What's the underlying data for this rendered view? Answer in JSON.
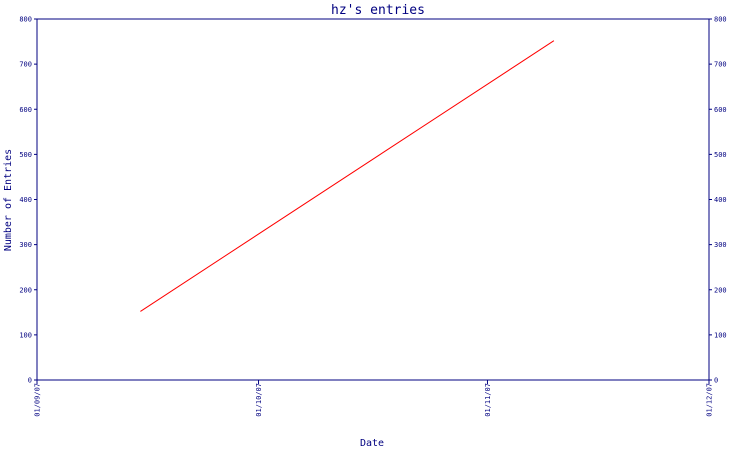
{
  "chart_data": {
    "type": "line",
    "title": "hz's entries",
    "xlabel": "Date",
    "ylabel": "Number of Entries",
    "x_ticks": [
      "01/09/07",
      "01/10/07",
      "01/11/07",
      "01/12/07"
    ],
    "y_ticks": [
      0,
      100,
      200,
      300,
      400,
      500,
      600,
      700,
      800
    ],
    "ylim": [
      0,
      800
    ],
    "xlim": [
      "2007-09-01",
      "2007-12-01"
    ],
    "series": [
      {
        "color": "#ff0000",
        "x": [
          "2007-09-15",
          "2007-11-10"
        ],
        "y": [
          152,
          752
        ]
      }
    ],
    "grid": false,
    "axis_color": "#000080"
  }
}
